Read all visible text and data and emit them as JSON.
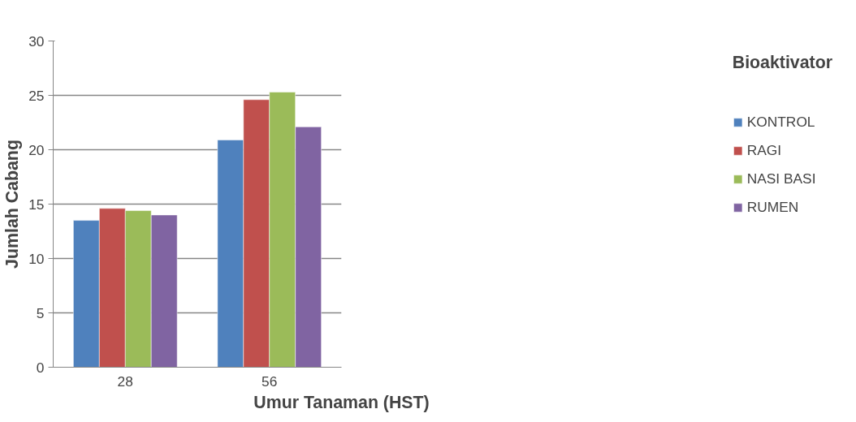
{
  "chart_data": {
    "type": "bar",
    "xlabel": "Umur Tanaman (HST)",
    "ylabel": "Jumlah Cabang",
    "legend_title": "Bioaktivator",
    "categories": [
      "28",
      "56"
    ],
    "series": [
      {
        "name": "KONTROL",
        "color": "#4f81bd",
        "values": [
          13.5,
          20.9
        ]
      },
      {
        "name": "RAGI",
        "color": "#c0504d",
        "values": [
          14.6,
          24.6
        ]
      },
      {
        "name": "NASI BASI",
        "color": "#9bbb59",
        "values": [
          14.4,
          25.3
        ]
      },
      {
        "name": "RUMEN",
        "color": "#8064a2",
        "values": [
          14.0,
          22.1
        ]
      }
    ],
    "ylim": [
      0,
      30
    ],
    "yticks": [
      0,
      5,
      10,
      15,
      20,
      25,
      30
    ],
    "grid": "y",
    "legend": "right"
  }
}
